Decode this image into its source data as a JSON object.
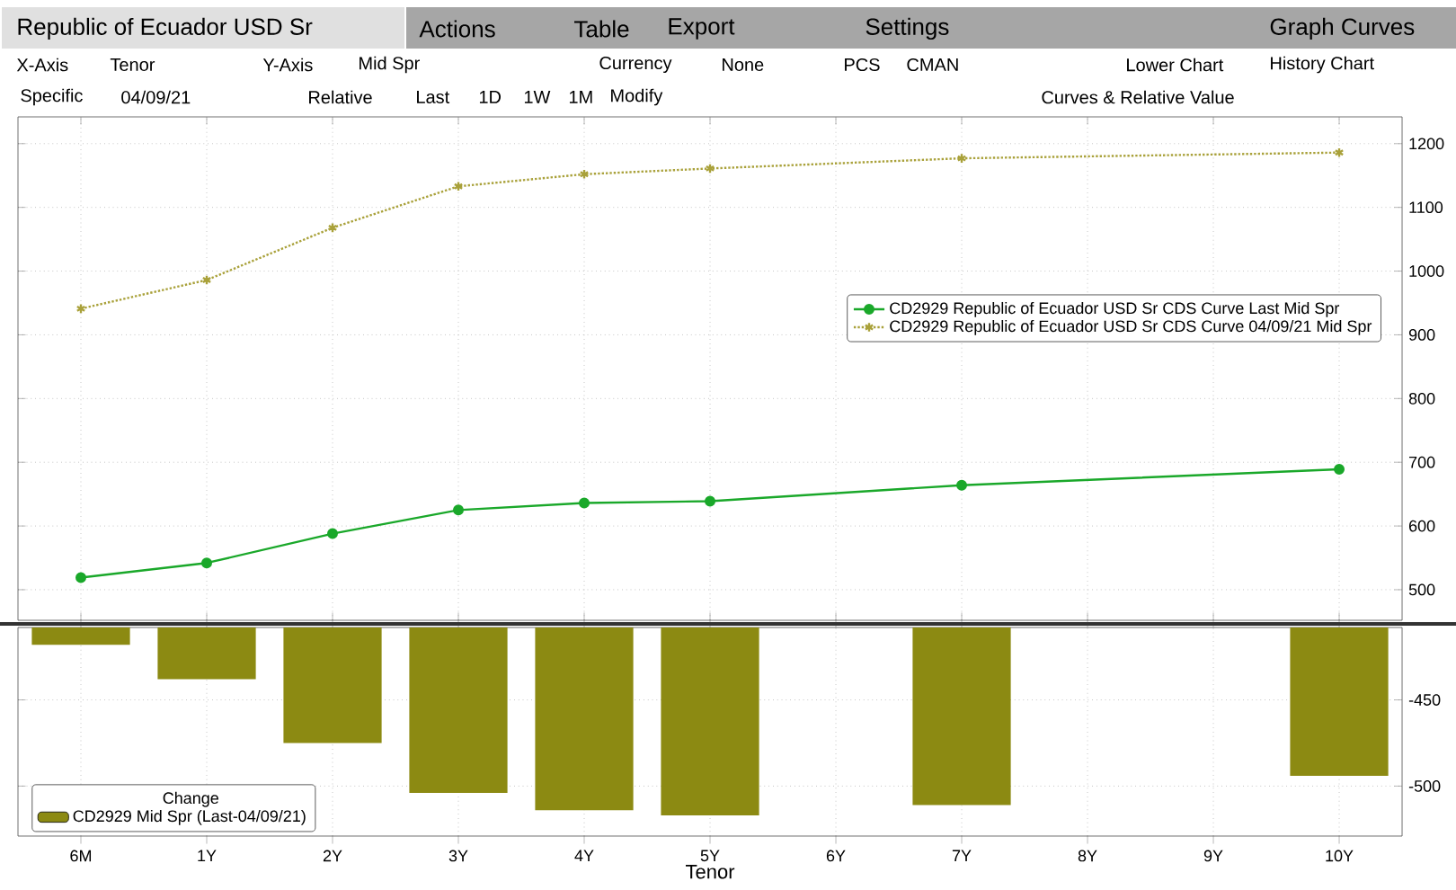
{
  "chart_data": [
    {
      "type": "line",
      "title": "Republic of Ecuador USD Sr",
      "annotations": [
        "Actions",
        "Table",
        "Export",
        "Settings",
        "Graph Curves",
        "X-Axis",
        "Tenor",
        "Y-Axis",
        "Mid Spr",
        "Currency",
        "None",
        "PCS",
        "CMAN",
        "Lower Chart",
        "History Chart",
        "Specific",
        "04/09/21",
        "Relative",
        "Last",
        "1D",
        "1W",
        "1M",
        "Modify",
        "Curves & Relative Value"
      ],
      "categories": [
        null,
        null,
        null,
        null,
        null,
        null,
        null,
        null,
        null,
        null,
        null
      ],
      "series": [
        {
          "name": "CD2929 Republic of Ecuador USD Sr CDS Curve Last Mid Spr",
          "color": "#1aa82a",
          "marker": "circle",
          "line_style": "solid",
          "values": [
            519,
            542,
            588,
            625,
            636,
            639,
            null,
            664,
            null,
            null,
            689
          ]
        },
        {
          "name": "CD2929 Republic of Ecuador USD Sr CDS Curve 04/09/21 Mid Spr",
          "color": "#a9a13a",
          "marker": "cross",
          "line_style": "dotted",
          "values": [
            941,
            986,
            1068,
            1133,
            1152,
            1161,
            null,
            1177,
            null,
            null,
            1186
          ]
        }
      ],
      "ylim": [
        452,
        1242
      ],
      "yticks": [
        500,
        600,
        700,
        800,
        900,
        1000,
        1100,
        1200
      ],
      "grid": true,
      "legend": "right",
      "tick_labels": "y"
    },
    {
      "type": "bar",
      "xlabel": "Tenor",
      "legend_title": "Change",
      "categories": [
        "6M",
        "1Y",
        "2Y",
        "3Y",
        "4Y",
        "5Y",
        "6Y",
        "7Y",
        "8Y",
        "9Y",
        "10Y"
      ],
      "series": [
        {
          "name": "CD2929 Mid Spr (Last-04/09/21)",
          "color": "#8c8a12",
          "values": [
            -418,
            -438,
            -475,
            -504,
            -514,
            -517,
            null,
            -511,
            null,
            null,
            -494
          ]
        }
      ],
      "ylim": [
        -529,
        -408
      ],
      "yticks": [
        -450,
        -500
      ],
      "grid": true,
      "legend": "bottom left"
    }
  ]
}
